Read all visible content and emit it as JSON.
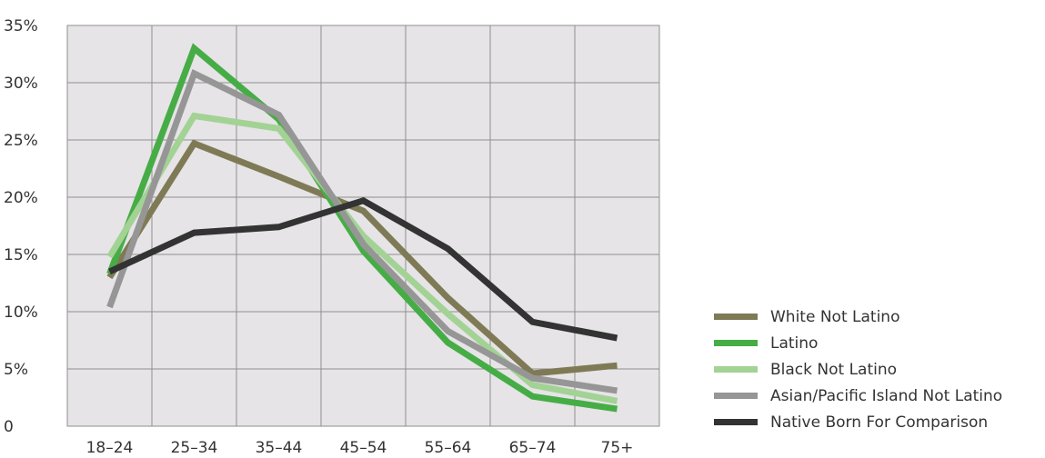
{
  "chart_data": {
    "type": "line",
    "categories": [
      "18–24",
      "25–34",
      "35–44",
      "45–54",
      "55–64",
      "65–74",
      "75+"
    ],
    "y_tick_labels": [
      "0",
      "5%",
      "10%",
      "15%",
      "20%",
      "25%",
      "30%",
      "35%"
    ],
    "ylim": [
      0,
      35
    ],
    "grid": true,
    "legend_position": "bottom-right",
    "series": [
      {
        "name": "White Not Latino",
        "color": "#7f7a56",
        "values": [
          13.0,
          24.7,
          21.8,
          18.8,
          11.2,
          4.6,
          5.3
        ]
      },
      {
        "name": "Latino",
        "color": "#46ad46",
        "values": [
          13.3,
          33.0,
          26.8,
          15.3,
          7.3,
          2.6,
          1.5
        ]
      },
      {
        "name": "Black Not Latino",
        "color": "#a3d295",
        "values": [
          14.8,
          27.1,
          26.0,
          16.6,
          9.8,
          3.6,
          2.2
        ]
      },
      {
        "name": "Asian/Pacific Island Not Latino",
        "color": "#979696",
        "values": [
          10.4,
          30.8,
          27.2,
          15.9,
          8.3,
          4.2,
          3.1
        ]
      },
      {
        "name": "Native Born For Comparison",
        "color": "#333333",
        "values": [
          13.5,
          16.9,
          17.4,
          19.7,
          15.5,
          9.1,
          7.7
        ]
      }
    ]
  }
}
